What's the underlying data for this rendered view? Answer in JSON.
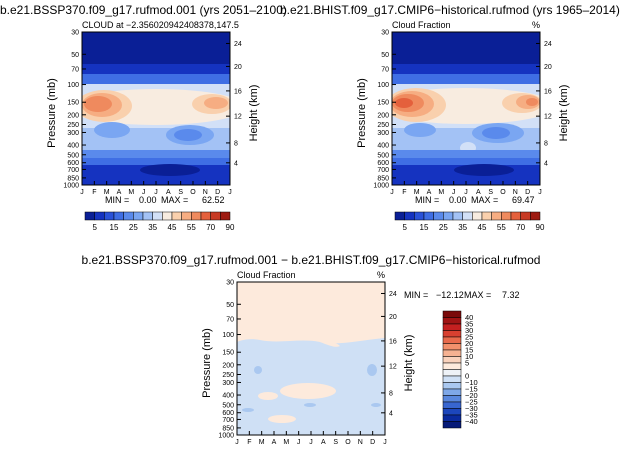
{
  "chart_data": [
    {
      "type": "heatmap",
      "title": "b.e21.BSSP370.f09_g17.rufmod.001 (yrs 2051–2100)",
      "subtitle_left": "CLOUD at −2.356020942408378,147.5",
      "ylabel": "Pressure (mb)",
      "ylabel_right": "Height (km)",
      "x_ticks": [
        "J",
        "F",
        "M",
        "A",
        "M",
        "J",
        "J",
        "A",
        "S",
        "O",
        "N",
        "D",
        "J"
      ],
      "y_ticks": [
        "30",
        "50",
        "70",
        "100",
        "150",
        "200",
        "250",
        "300",
        "400",
        "500",
        "600",
        "700",
        "850",
        "1000"
      ],
      "y_ticks_right": [
        "24",
        "20",
        "16",
        "12",
        "8",
        "4"
      ],
      "stats": {
        "min_label": "MIN =",
        "min": "0.00",
        "max_label": "MAX =",
        "max": "62.52"
      },
      "colorbar_labels": [
        "5",
        "15",
        "25",
        "35",
        "45",
        "55",
        "70",
        "90"
      ]
    },
    {
      "type": "heatmap",
      "title": "b.e21.BHIST.f09_g17.CMIP6−historical.rufmod (yrs 1965–2014)",
      "subtitle_left": "Cloud Fraction",
      "subtitle_right": "%",
      "ylabel": "Pressure (mb)",
      "ylabel_right": "Height (km)",
      "x_ticks": [
        "J",
        "F",
        "M",
        "A",
        "M",
        "J",
        "J",
        "A",
        "S",
        "O",
        "N",
        "D",
        "J"
      ],
      "y_ticks": [
        "30",
        "50",
        "70",
        "100",
        "150",
        "200",
        "250",
        "300",
        "400",
        "500",
        "600",
        "700",
        "850",
        "1000"
      ],
      "y_ticks_right": [
        "24",
        "20",
        "16",
        "12",
        "8",
        "4"
      ],
      "stats": {
        "min_label": "MIN =",
        "min": "0.00",
        "max_label": "MAX =",
        "max": "69.47"
      },
      "colorbar_labels": [
        "5",
        "15",
        "25",
        "35",
        "45",
        "55",
        "70",
        "90"
      ]
    },
    {
      "type": "heatmap",
      "title": "b.e21.BSSP370.f09_g17.rufmod.001 − b.e21.BHIST.f09_g17.CMIP6−historical.rufmod",
      "subtitle_left": "Cloud Fraction",
      "subtitle_right": "%",
      "ylabel": "Pressure (mb)",
      "ylabel_right": "Height (km)",
      "x_ticks": [
        "J",
        "F",
        "M",
        "A",
        "M",
        "J",
        "J",
        "A",
        "S",
        "O",
        "N",
        "D",
        "J"
      ],
      "y_ticks": [
        "30",
        "50",
        "70",
        "100",
        "150",
        "200",
        "250",
        "300",
        "400",
        "500",
        "600",
        "700",
        "850",
        "1000"
      ],
      "y_ticks_right": [
        "24",
        "20",
        "16",
        "12",
        "8",
        "4"
      ],
      "stats": {
        "min_label": "MIN =",
        "min": "−12.12",
        "max_label": "MAX =",
        "max": "7.32"
      },
      "colorbar_labels": [
        "40",
        "35",
        "30",
        "25",
        "20",
        "15",
        "10",
        "5",
        "0",
        "−10",
        "−15",
        "−20",
        "−25",
        "−30",
        "−35",
        "−40"
      ]
    }
  ],
  "colors": {
    "abs_scale": [
      "#0a1f96",
      "#1533c0",
      "#2a52d8",
      "#3f6ee4",
      "#5a8aec",
      "#7aa6f2",
      "#a3c2f5",
      "#d2e0f7",
      "#f8ece0",
      "#f9d0ad",
      "#f6ad82",
      "#ef8a5e",
      "#e4603c",
      "#c73a24",
      "#9e1a10"
    ],
    "diff_scale": [
      "#7a0a0a",
      "#a01414",
      "#c42020",
      "#d84030",
      "#e86a4c",
      "#f2906c",
      "#f6b292",
      "#f9d2bc",
      "#fdeadc",
      "#eef2f7",
      "#cfe0f5",
      "#aac8f0",
      "#7fa8e8",
      "#5a88de",
      "#3866d0",
      "#1c46bc",
      "#0a2a9e",
      "#061a78"
    ]
  }
}
